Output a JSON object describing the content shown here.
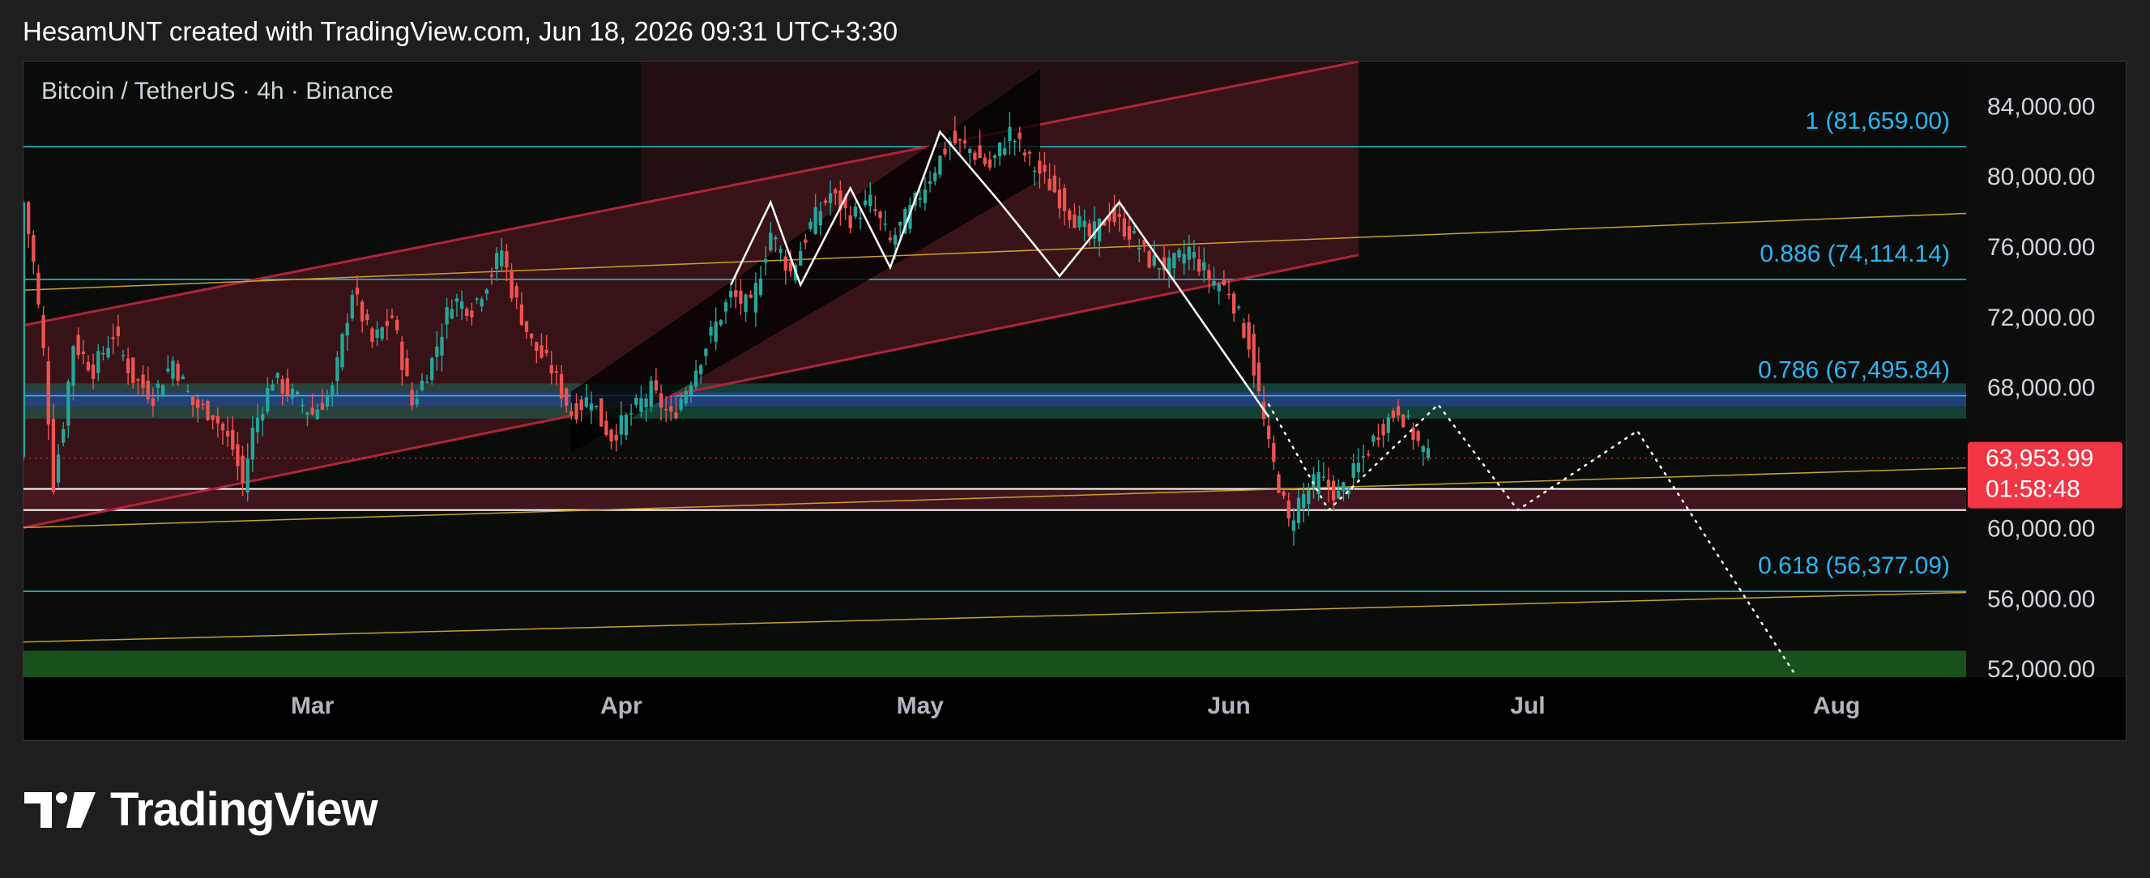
{
  "header": {
    "credit": "HesamUNT created with TradingView.com, Jun 18, 2026 09:31 UTC+3:30"
  },
  "brand": {
    "name": "TradingView",
    "icon": "tradingview-logo-icon"
  },
  "colors": {
    "background": "#0d0d0d",
    "axis_text": "#d1d4dc",
    "fib_line": "#26c6da",
    "fib_text": "#29b6f6",
    "channel_border": "#b0243a",
    "channel_fill": "#5c1a22",
    "trendline": "#c9a227",
    "support_zone": "#4a1820",
    "resistance_band": "#1f4e79",
    "green_zone": "#1b5e20",
    "candle_up": "#26a69a",
    "candle_down": "#ef5350",
    "price_label_bg": "#f23645"
  },
  "chart_data": {
    "type": "candlestick",
    "symbol_title": "Bitcoin / TetherUS · 4h · Binance",
    "y_ticks": [
      "84,000.00",
      "80,000.00",
      "76,000.00",
      "72,000.00",
      "68,000.00",
      "60,000.00",
      "56,000.00",
      "52,000.00"
    ],
    "y_tick_values": [
      84000,
      80000,
      76000,
      72000,
      68000,
      60000,
      56000,
      52000
    ],
    "ylim": [
      51500,
      86500
    ],
    "x_ticks": [
      "Mar",
      "Apr",
      "May",
      "Jun",
      "Jul",
      "Aug"
    ],
    "x_tick_days": [
      29,
      60,
      90,
      121,
      151,
      182
    ],
    "xlim": [
      0,
      195
    ],
    "x_unit": "days since Feb 1",
    "last_price": {
      "value": 63953.99,
      "label": "63,953.99",
      "countdown": "01:58:48"
    },
    "fib_levels": [
      {
        "ratio": "1",
        "value": 81659.0,
        "label": "1 (81,659.00)"
      },
      {
        "ratio": "0.886",
        "value": 74114.14,
        "label": "0.886 (74,114.14)"
      },
      {
        "ratio": "0.786",
        "value": 67495.84,
        "label": "0.786 (67,495.84)"
      },
      {
        "ratio": "0.618",
        "value": 56377.09,
        "label": "0.618 (56,377.09)"
      }
    ],
    "support_zone": [
      61000,
      62200
    ],
    "green_zone": [
      51500,
      53000
    ],
    "resistance_band": [
      66200,
      68200
    ],
    "price_path": [
      [
        0,
        78500
      ],
      [
        1,
        75000
      ],
      [
        2,
        70000
      ],
      [
        3,
        62500
      ],
      [
        4,
        66000
      ],
      [
        5,
        70500
      ],
      [
        7,
        69000
      ],
      [
        9,
        71000
      ],
      [
        11,
        68500
      ],
      [
        13,
        67500
      ],
      [
        15,
        69500
      ],
      [
        17,
        67000
      ],
      [
        19,
        66500
      ],
      [
        21,
        64500
      ],
      [
        22,
        62500
      ],
      [
        23,
        65500
      ],
      [
        25,
        68500
      ],
      [
        27,
        67500
      ],
      [
        29,
        66500
      ],
      [
        31,
        67800
      ],
      [
        33,
        73500
      ],
      [
        35,
        70500
      ],
      [
        37,
        72000
      ],
      [
        39,
        67000
      ],
      [
        41,
        69500
      ],
      [
        43,
        73000
      ],
      [
        45,
        72500
      ],
      [
        47,
        74500
      ],
      [
        48,
        75800
      ],
      [
        49,
        73500
      ],
      [
        51,
        70500
      ],
      [
        53,
        69000
      ],
      [
        55,
        66500
      ],
      [
        57,
        67500
      ],
      [
        58,
        66000
      ],
      [
        59,
        65200
      ],
      [
        61,
        66500
      ],
      [
        63,
        67800
      ],
      [
        65,
        66200
      ],
      [
        67,
        68500
      ],
      [
        69,
        71000
      ],
      [
        71,
        73200
      ],
      [
        73,
        72500
      ],
      [
        75,
        76800
      ],
      [
        77,
        74500
      ],
      [
        79,
        77200
      ],
      [
        81,
        79000
      ],
      [
        83,
        77600
      ],
      [
        85,
        78500
      ],
      [
        87,
        76200
      ],
      [
        89,
        78000
      ],
      [
        91,
        80000
      ],
      [
        93,
        82000
      ],
      [
        95,
        81500
      ],
      [
        97,
        80500
      ],
      [
        99,
        82500
      ],
      [
        101,
        80800
      ],
      [
        103,
        79500
      ],
      [
        105,
        78000
      ],
      [
        107,
        76500
      ],
      [
        109,
        77800
      ],
      [
        111,
        76800
      ],
      [
        113,
        75200
      ],
      [
        115,
        74800
      ],
      [
        117,
        75800
      ],
      [
        119,
        74200
      ],
      [
        121,
        73500
      ],
      [
        123,
        70500
      ],
      [
        124,
        67500
      ],
      [
        125,
        64500
      ],
      [
        126,
        62500
      ],
      [
        127,
        60200
      ],
      [
        128,
        61500
      ],
      [
        130,
        62800
      ],
      [
        132,
        61800
      ],
      [
        134,
        63500
      ],
      [
        136,
        65500
      ],
      [
        138,
        66800
      ],
      [
        139,
        65800
      ],
      [
        140,
        64800
      ],
      [
        141,
        63954
      ]
    ],
    "projection": [
      [
        125,
        67000
      ],
      [
        131,
        61000
      ],
      [
        142,
        67000
      ],
      [
        150,
        61000
      ],
      [
        162,
        65500
      ],
      [
        178,
        51500
      ]
    ],
    "pattern_zigzag": [
      [
        71,
        73800
      ],
      [
        75,
        78500
      ],
      [
        78,
        73800
      ],
      [
        83,
        79300
      ],
      [
        87,
        74800
      ],
      [
        92,
        82500
      ],
      [
        98,
        78500
      ],
      [
        104,
        74300
      ],
      [
        110,
        78500
      ],
      [
        125,
        66300
      ]
    ],
    "channel": {
      "lower": [
        [
          0,
          60000
        ],
        [
          134,
          75500
        ]
      ],
      "upper": [
        [
          0,
          71500
        ],
        [
          134,
          86500
        ]
      ]
    },
    "inner_channel": {
      "lower": [
        [
          55,
          64300
        ],
        [
          102,
          79800
        ]
      ],
      "upper": [
        [
          55,
          67700
        ],
        [
          102,
          86000
        ]
      ]
    },
    "trendlines": [
      {
        "from": [
          0,
          73500
        ],
        "to": [
          201,
          78000
        ]
      },
      {
        "from": [
          0,
          60000
        ],
        "to": [
          201,
          63500
        ]
      },
      {
        "from": [
          0,
          53500
        ],
        "to": [
          201,
          56400
        ]
      }
    ]
  }
}
